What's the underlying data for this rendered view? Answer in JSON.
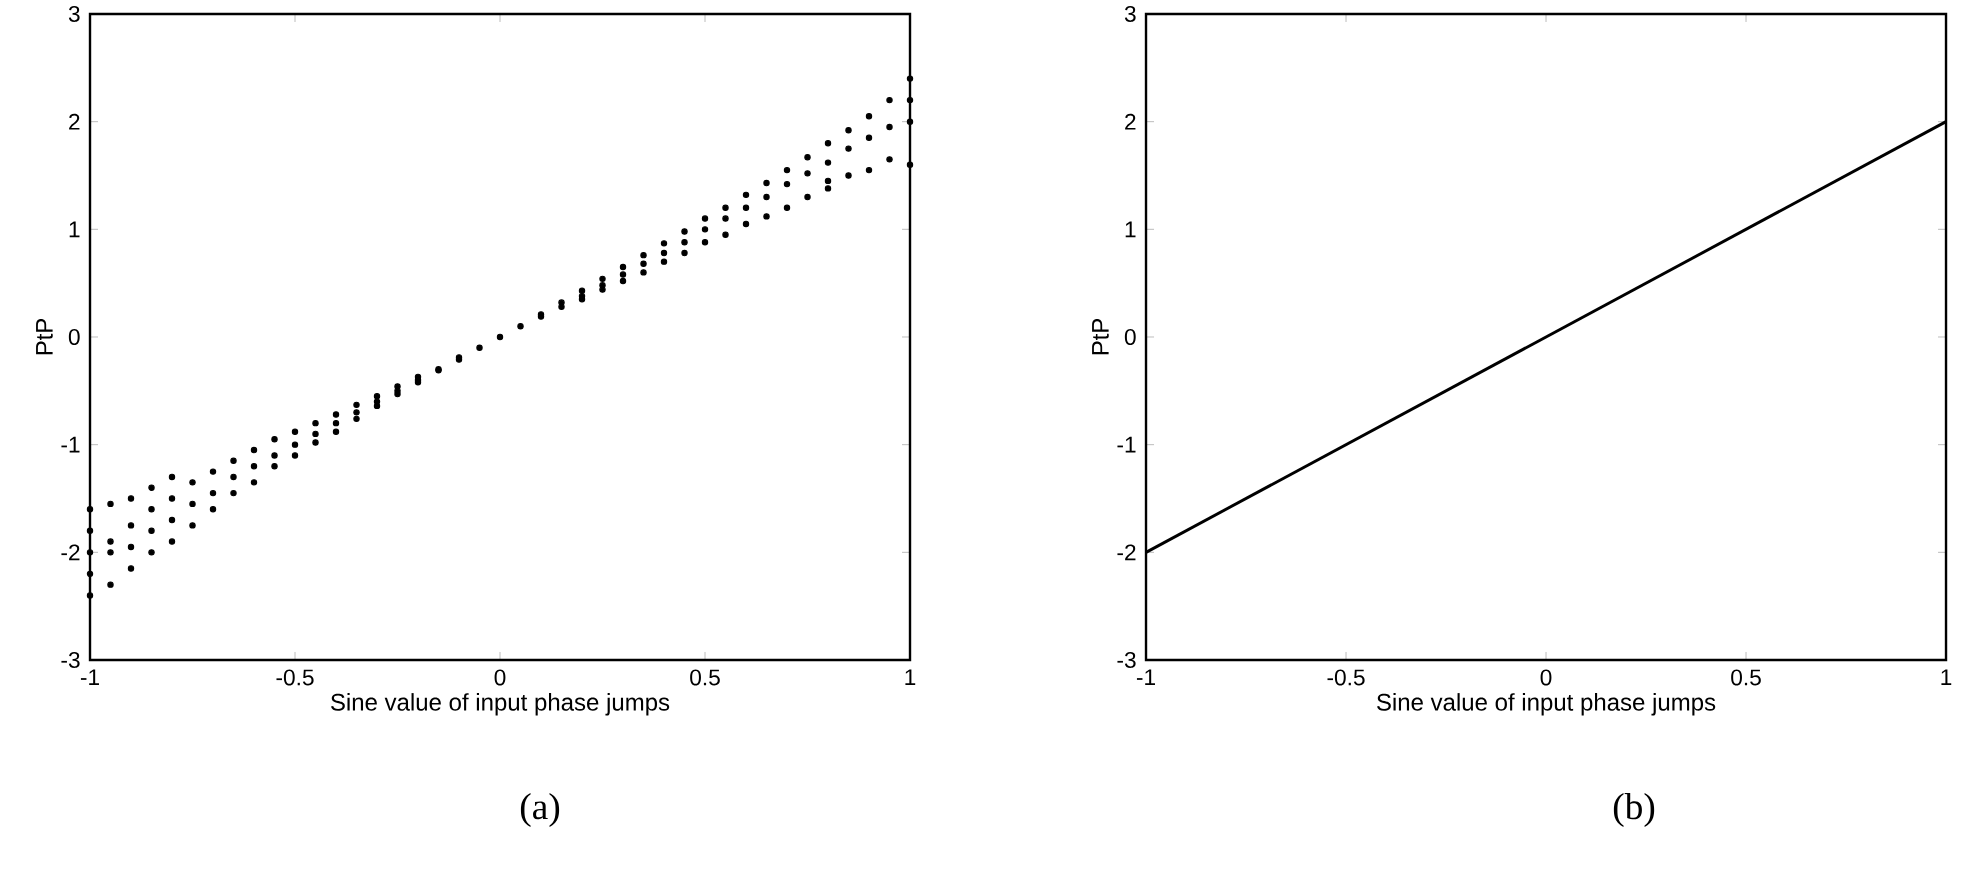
{
  "chart_data": [
    {
      "type": "scatter",
      "xlabel": "Sine value of input phase jumps",
      "ylabel": "PtP",
      "annotations": [
        "(a)"
      ],
      "xlim": [
        -1,
        1
      ],
      "ylim": [
        -3,
        3
      ],
      "xticks": [
        -1,
        -0.5,
        0,
        0.5,
        1
      ],
      "yticks": [
        -3,
        -2,
        -1,
        0,
        1,
        2,
        3
      ],
      "color": "#000000",
      "x": [
        -1,
        -1,
        -1,
        -1,
        -1,
        -0.95,
        -0.95,
        -0.95,
        -0.95,
        -0.9,
        -0.9,
        -0.9,
        -0.9,
        -0.85,
        -0.85,
        -0.85,
        -0.85,
        -0.8,
        -0.8,
        -0.8,
        -0.8,
        -0.75,
        -0.75,
        -0.75,
        -0.7,
        -0.7,
        -0.7,
        -0.65,
        -0.65,
        -0.65,
        -0.6,
        -0.6,
        -0.6,
        -0.55,
        -0.55,
        -0.55,
        -0.5,
        -0.5,
        -0.5,
        -0.45,
        -0.45,
        -0.45,
        -0.4,
        -0.4,
        -0.4,
        -0.35,
        -0.35,
        -0.35,
        -0.3,
        -0.3,
        -0.3,
        -0.25,
        -0.25,
        -0.25,
        -0.2,
        -0.2,
        -0.2,
        -0.15,
        -0.15,
        -0.1,
        -0.1,
        -0.05,
        0,
        0.05,
        0.1,
        0.1,
        0.15,
        0.15,
        0.2,
        0.2,
        0.2,
        0.25,
        0.25,
        0.25,
        0.3,
        0.3,
        0.3,
        0.35,
        0.35,
        0.35,
        0.4,
        0.4,
        0.4,
        0.45,
        0.45,
        0.45,
        0.5,
        0.5,
        0.5,
        0.55,
        0.55,
        0.55,
        0.6,
        0.6,
        0.6,
        0.65,
        0.65,
        0.65,
        0.7,
        0.7,
        0.7,
        0.75,
        0.75,
        0.75,
        0.8,
        0.8,
        0.8,
        0.8,
        0.85,
        0.85,
        0.85,
        0.9,
        0.9,
        0.9,
        0.95,
        0.95,
        0.95,
        1,
        1,
        1,
        1
      ],
      "values": [
        -2.4,
        -2.2,
        -2.0,
        -1.6,
        -1.8,
        -2.3,
        -2.0,
        -1.9,
        -1.55,
        -2.15,
        -1.95,
        -1.75,
        -1.5,
        -2.0,
        -1.8,
        -1.6,
        -1.4,
        -1.9,
        -1.7,
        -1.5,
        -1.3,
        -1.75,
        -1.55,
        -1.35,
        -1.6,
        -1.45,
        -1.25,
        -1.45,
        -1.3,
        -1.15,
        -1.35,
        -1.2,
        -1.05,
        -1.2,
        -1.1,
        -0.95,
        -1.1,
        -1.0,
        -0.88,
        -0.98,
        -0.9,
        -0.8,
        -0.88,
        -0.8,
        -0.72,
        -0.76,
        -0.7,
        -0.63,
        -0.64,
        -0.6,
        -0.55,
        -0.53,
        -0.5,
        -0.46,
        -0.42,
        -0.4,
        -0.37,
        -0.31,
        -0.3,
        -0.21,
        -0.19,
        -0.1,
        0,
        0.1,
        0.21,
        0.19,
        0.32,
        0.28,
        0.43,
        0.38,
        0.35,
        0.54,
        0.48,
        0.44,
        0.65,
        0.58,
        0.52,
        0.76,
        0.68,
        0.6,
        0.87,
        0.78,
        0.7,
        0.98,
        0.88,
        0.78,
        1.1,
        1.0,
        0.88,
        1.2,
        1.1,
        0.95,
        1.32,
        1.2,
        1.05,
        1.43,
        1.3,
        1.12,
        1.55,
        1.42,
        1.2,
        1.67,
        1.52,
        1.3,
        1.8,
        1.62,
        1.38,
        1.45,
        1.92,
        1.75,
        1.5,
        2.05,
        1.85,
        1.55,
        2.2,
        1.95,
        1.65,
        2.4,
        2.2,
        2.0,
        1.6
      ]
    },
    {
      "type": "line",
      "xlabel": "Sine value of input phase jumps",
      "ylabel": "PtP",
      "annotations": [
        "(b)"
      ],
      "xlim": [
        -1,
        1
      ],
      "ylim": [
        -3,
        3
      ],
      "xticks": [
        -1,
        -0.5,
        0,
        0.5,
        1
      ],
      "yticks": [
        -3,
        -2,
        -1,
        0,
        1,
        2,
        3
      ],
      "line_style": "solid",
      "color": "#000000",
      "x": [
        -1,
        1
      ],
      "values": [
        -2,
        2
      ]
    }
  ]
}
